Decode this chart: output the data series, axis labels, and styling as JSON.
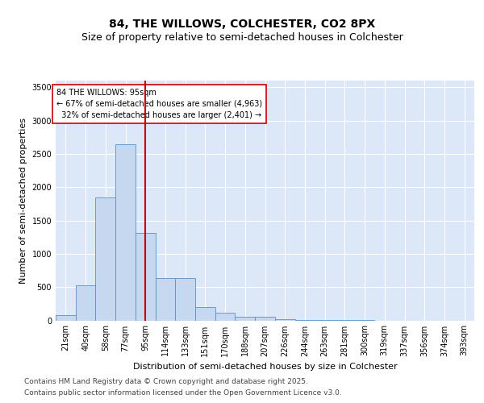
{
  "title_line1": "84, THE WILLOWS, COLCHESTER, CO2 8PX",
  "title_line2": "Size of property relative to semi-detached houses in Colchester",
  "xlabel": "Distribution of semi-detached houses by size in Colchester",
  "ylabel": "Number of semi-detached properties",
  "categories": [
    "21sqm",
    "40sqm",
    "58sqm",
    "77sqm",
    "95sqm",
    "114sqm",
    "133sqm",
    "151sqm",
    "170sqm",
    "188sqm",
    "207sqm",
    "226sqm",
    "244sqm",
    "263sqm",
    "281sqm",
    "300sqm",
    "319sqm",
    "337sqm",
    "356sqm",
    "374sqm",
    "393sqm"
  ],
  "values": [
    75,
    530,
    1850,
    2640,
    1310,
    640,
    640,
    200,
    110,
    60,
    50,
    20,
    10,
    5,
    2,
    1,
    0,
    0,
    0,
    0,
    0
  ],
  "bar_color": "#c5d8f0",
  "bar_edge_color": "#5a8fc2",
  "property_label": "84 THE WILLOWS: 95sqm",
  "smaller_pct": 67,
  "smaller_count": 4963,
  "larger_pct": 32,
  "larger_count": 2401,
  "vline_color": "#cc0000",
  "vline_position": 4,
  "annotation_box_color": "#cc0000",
  "ylim": [
    0,
    3600
  ],
  "yticks": [
    0,
    500,
    1000,
    1500,
    2000,
    2500,
    3000,
    3500
  ],
  "background_color": "#dce8f8",
  "footer_line1": "Contains HM Land Registry data © Crown copyright and database right 2025.",
  "footer_line2": "Contains public sector information licensed under the Open Government Licence v3.0.",
  "title_fontsize": 10,
  "subtitle_fontsize": 9,
  "axis_label_fontsize": 8,
  "tick_fontsize": 7,
  "annotation_fontsize": 7,
  "footer_fontsize": 6.5
}
